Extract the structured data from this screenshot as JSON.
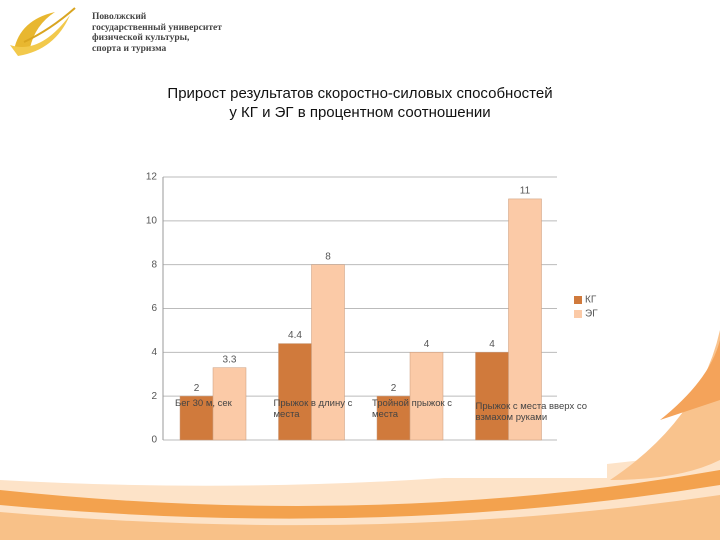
{
  "header": {
    "logo_lines": [
      "Поволжский",
      "государственный университет",
      "физической культуры,",
      "спорта и туризма"
    ]
  },
  "chart_data": {
    "type": "bar",
    "title": [
      "Прирост результатов скоростно-силовых способностей",
      "у КГ и ЭГ в процентном соотношении"
    ],
    "categories": [
      "Бег 30 м, сек",
      "Прыжок в длину с места",
      "Тройной прыжок с места",
      "Прыжок с места вверх со взмахом руками"
    ],
    "series": [
      {
        "name": "КГ",
        "color": "#d07a3c",
        "values": [
          2,
          4.4,
          2,
          4
        ]
      },
      {
        "name": "ЭГ",
        "color": "#fbcaa7",
        "values": [
          3.3,
          8,
          4,
          11
        ]
      }
    ],
    "ylim": [
      0,
      12
    ],
    "yticks": [
      0,
      2,
      4,
      6,
      8,
      10,
      12
    ],
    "grid": true,
    "legend": "right"
  }
}
